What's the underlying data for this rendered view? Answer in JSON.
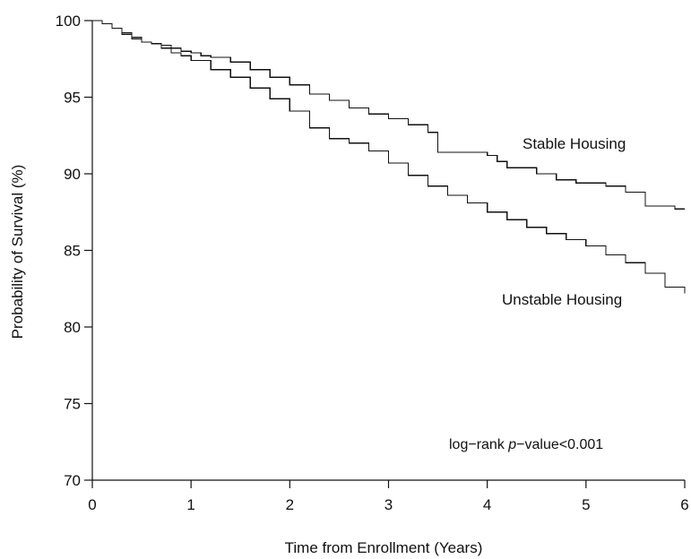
{
  "chart_data": {
    "type": "line",
    "step": true,
    "xlabel": "Time from Enrollment (Years)",
    "ylabel": "Probability of Survival (%)",
    "xlim": [
      0,
      6
    ],
    "ylim": [
      70,
      100
    ],
    "x_ticks": [
      0,
      1,
      2,
      3,
      4,
      5,
      6
    ],
    "y_ticks": [
      70,
      75,
      80,
      85,
      90,
      95,
      100
    ],
    "grid": false,
    "annotation": {
      "prefix": "log−rank ",
      "italic": "p",
      "suffix": "−value<0.001"
    },
    "series": [
      {
        "name": "Stable Housing",
        "color": "#111111",
        "x": [
          0,
          0.1,
          0.2,
          0.3,
          0.4,
          0.5,
          0.6,
          0.7,
          0.8,
          0.9,
          1.0,
          1.1,
          1.2,
          1.4,
          1.6,
          1.8,
          2.0,
          2.2,
          2.4,
          2.6,
          2.8,
          3.0,
          3.2,
          3.4,
          3.5,
          3.6,
          3.8,
          4.0,
          4.1,
          4.2,
          4.5,
          4.7,
          4.9,
          5.2,
          5.4,
          5.6,
          5.9,
          6.0
        ],
        "y": [
          100,
          99.8,
          99.5,
          99.1,
          98.8,
          98.6,
          98.5,
          98.4,
          98.2,
          98.0,
          97.9,
          97.7,
          97.6,
          97.3,
          96.8,
          96.3,
          95.8,
          95.2,
          94.8,
          94.3,
          93.9,
          93.6,
          93.2,
          92.7,
          91.4,
          91.4,
          91.4,
          91.2,
          90.8,
          90.4,
          90.0,
          89.6,
          89.4,
          89.2,
          88.8,
          87.9,
          87.7,
          87.7
        ]
      },
      {
        "name": "Unstable Housing",
        "color": "#111111",
        "x": [
          0,
          0.1,
          0.2,
          0.3,
          0.4,
          0.5,
          0.6,
          0.7,
          0.8,
          0.9,
          1.0,
          1.2,
          1.4,
          1.6,
          1.8,
          2.0,
          2.2,
          2.4,
          2.6,
          2.8,
          3.0,
          3.2,
          3.4,
          3.6,
          3.8,
          4.0,
          4.2,
          4.4,
          4.6,
          4.8,
          5.0,
          5.2,
          5.4,
          5.6,
          5.8,
          6.0
        ],
        "y": [
          100,
          99.8,
          99.5,
          99.2,
          98.9,
          98.6,
          98.5,
          98.2,
          97.9,
          97.7,
          97.4,
          96.8,
          96.3,
          95.6,
          94.9,
          94.1,
          93.0,
          92.3,
          92.0,
          91.5,
          90.7,
          89.9,
          89.2,
          88.6,
          88.1,
          87.5,
          87.0,
          86.5,
          86.1,
          85.7,
          85.3,
          84.7,
          84.2,
          83.5,
          82.6,
          82.2
        ]
      }
    ]
  }
}
